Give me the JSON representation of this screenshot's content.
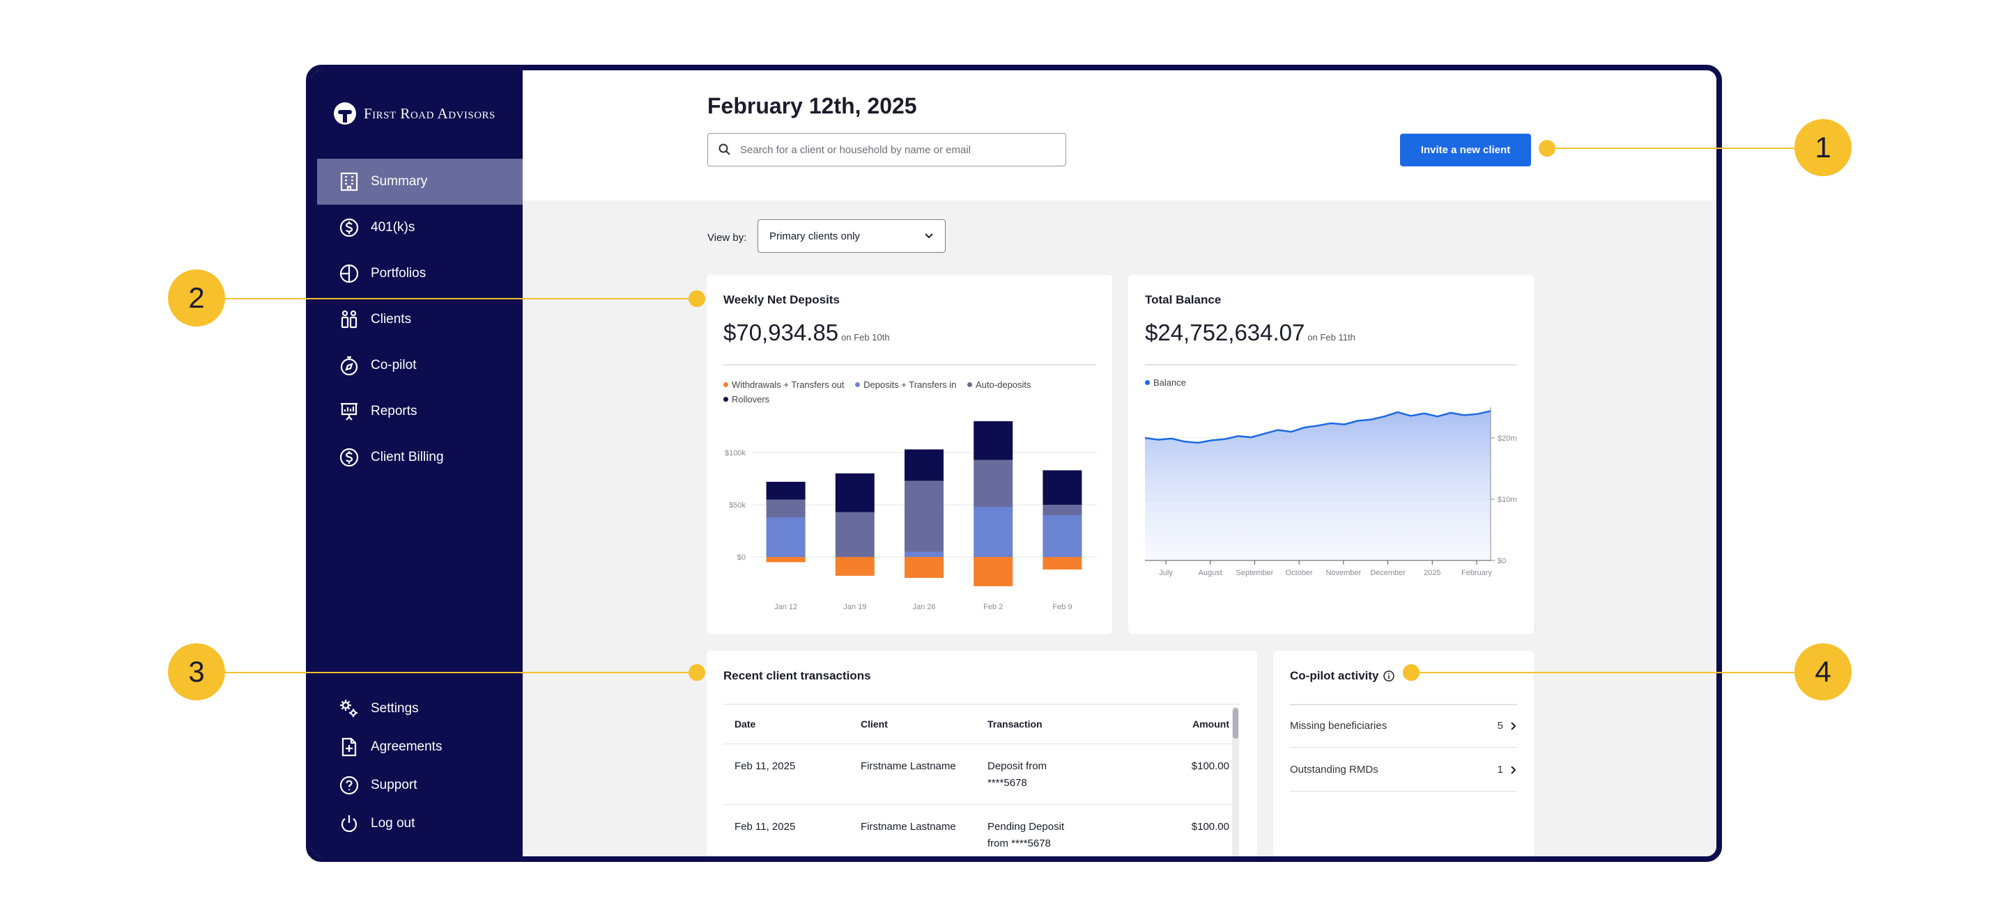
{
  "brand": {
    "name": "First Road Advisors"
  },
  "sidebar": {
    "items": [
      {
        "label": "Summary",
        "icon": "building-icon"
      },
      {
        "label": "401(k)s",
        "icon": "dollar-circle-icon"
      },
      {
        "label": "Portfolios",
        "icon": "pie-chart-icon"
      },
      {
        "label": "Clients",
        "icon": "people-icon"
      },
      {
        "label": "Co-pilot",
        "icon": "compass-icon"
      },
      {
        "label": "Reports",
        "icon": "presentation-icon"
      },
      {
        "label": "Client Billing",
        "icon": "dollar-circle-icon"
      }
    ],
    "bottom_items": [
      {
        "label": "Settings",
        "icon": "gears-icon"
      },
      {
        "label": "Agreements",
        "icon": "document-plus-icon"
      },
      {
        "label": "Support",
        "icon": "question-circle-icon"
      },
      {
        "label": "Log out",
        "icon": "power-icon"
      }
    ]
  },
  "header": {
    "date": "February 12th, 2025",
    "search_placeholder": "Search for a client or household by name or email",
    "invite_label": "Invite a new client"
  },
  "view_by": {
    "label": "View by:",
    "selected": "Primary clients only"
  },
  "weekly": {
    "title": "Weekly Net Deposits",
    "amount": "$70,934.85",
    "date_note": "on Feb 10th",
    "legend": [
      "Withdrawals + Transfers out",
      "Deposits + Transfers in",
      "Auto-deposits",
      "Rollovers"
    ],
    "colors": {
      "withdrawals": "#f57f2a",
      "deposits": "#6a83d2",
      "auto": "#686c9c",
      "rollovers": "#0c0c4e"
    }
  },
  "total": {
    "title": "Total Balance",
    "amount": "$24,752,634.07",
    "date_note": "on Feb 11th",
    "legend": [
      "Balance"
    ],
    "color": "#1b69e3"
  },
  "transactions": {
    "title": "Recent client transactions",
    "columns": [
      "Date",
      "Client",
      "Transaction",
      "Amount"
    ],
    "rows": [
      {
        "date": "Feb 11, 2025",
        "client": "Firstname Lastname",
        "tx1": "Deposit from",
        "tx2": "****5678",
        "amount": "$100.00"
      },
      {
        "date": "Feb 11, 2025",
        "client": "Firstname Lastname",
        "tx1": "Pending Deposit",
        "tx2": "from ****5678",
        "amount": "$100.00"
      }
    ]
  },
  "copilot": {
    "title": "Co-pilot activity",
    "rows": [
      {
        "label": "Missing beneficiaries",
        "count": "5"
      },
      {
        "label": "Outstanding RMDs",
        "count": "1"
      }
    ]
  },
  "callouts": [
    "1",
    "2",
    "3",
    "4"
  ],
  "chart_data": [
    {
      "type": "bar",
      "stacked": true,
      "title": "Weekly Net Deposits",
      "categories": [
        "Jan 12",
        "Jan 19",
        "Jan 26",
        "Feb 2",
        "Feb 9"
      ],
      "y_ticks": [
        "$100k",
        "$50k",
        "$0"
      ],
      "ylim": [
        -30000,
        130000
      ],
      "series": [
        {
          "name": "Withdrawals + Transfers out",
          "values": [
            -5000,
            -18000,
            -20000,
            -28000,
            -12000
          ]
        },
        {
          "name": "Deposits + Transfers in",
          "values": [
            38000,
            0,
            5000,
            48000,
            40000
          ]
        },
        {
          "name": "Auto-deposits",
          "values": [
            17000,
            43000,
            68000,
            45000,
            10000
          ]
        },
        {
          "name": "Rollovers",
          "values": [
            17000,
            37000,
            30000,
            37000,
            33000
          ]
        }
      ]
    },
    {
      "type": "area",
      "title": "Total Balance",
      "series": [
        {
          "name": "Balance"
        }
      ],
      "x_ticks": [
        "July",
        "August",
        "September",
        "October",
        "November",
        "December",
        "2025",
        "February"
      ],
      "y_ticks": [
        "$20m",
        "$10m",
        "$0"
      ],
      "ylim": [
        0,
        25000000
      ],
      "x": [
        0,
        3,
        6,
        9,
        12,
        15,
        18,
        21,
        24,
        27,
        30,
        33,
        36,
        39,
        42,
        45,
        48,
        51,
        54,
        57,
        60,
        63,
        66,
        69,
        72,
        75,
        78
      ],
      "values": [
        20000000,
        19700000,
        19900000,
        19400000,
        19200000,
        19600000,
        19800000,
        20300000,
        20100000,
        20700000,
        21300000,
        21000000,
        21700000,
        22000000,
        22400000,
        22200000,
        22800000,
        23000000,
        23500000,
        24200000,
        23600000,
        24000000,
        23500000,
        24100000,
        23700000,
        23900000,
        24400000
      ]
    }
  ]
}
